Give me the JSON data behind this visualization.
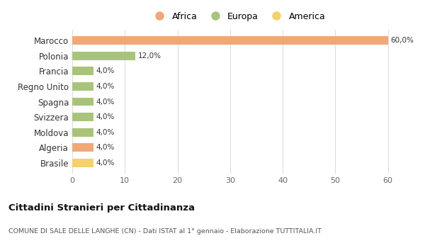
{
  "categories": [
    "Marocco",
    "Polonia",
    "Francia",
    "Regno Unito",
    "Spagna",
    "Svizzera",
    "Moldova",
    "Algeria",
    "Brasile"
  ],
  "values": [
    60.0,
    12.0,
    4.0,
    4.0,
    4.0,
    4.0,
    4.0,
    4.0,
    4.0
  ],
  "bar_colors": [
    "#f0a875",
    "#a8c47a",
    "#a8c47a",
    "#a8c47a",
    "#a8c47a",
    "#a8c47a",
    "#a8c47a",
    "#f0a875",
    "#f5d16a"
  ],
  "legend_labels": [
    "Africa",
    "Europa",
    "America"
  ],
  "legend_colors": [
    "#f0a875",
    "#a8c47a",
    "#f5d16a"
  ],
  "labels": [
    "60,0%",
    "12,0%",
    "4,0%",
    "4,0%",
    "4,0%",
    "4,0%",
    "4,0%",
    "4,0%",
    "4,0%"
  ],
  "xlim": [
    0,
    63
  ],
  "xticks": [
    0,
    10,
    20,
    30,
    40,
    50,
    60
  ],
  "title": "Cittadini Stranieri per Cittadinanza",
  "subtitle": "COMUNE DI SALE DELLE LANGHE (CN) - Dati ISTAT al 1° gennaio - Elaborazione TUTTITALIA.IT",
  "background_color": "#ffffff",
  "grid_color": "#dddddd",
  "bar_height": 0.55
}
